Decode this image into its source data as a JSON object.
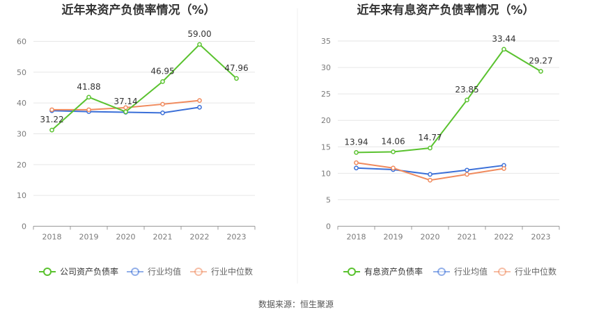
{
  "source_text": "数据来源：恒生聚源",
  "colors": {
    "company": "#5ac22f",
    "industry_avg": "#3a6fd8",
    "industry_median": "#f08a5d",
    "grid": "#e6e6e6",
    "axis": "#999999",
    "tick_text": "#7a7a7a",
    "title": "#333333",
    "label": "#333333"
  },
  "chart_data": [
    {
      "type": "line",
      "title": "近年来资产负债率情况（%）",
      "categories": [
        "2018",
        "2019",
        "2020",
        "2021",
        "2022",
        "2023"
      ],
      "ylim": [
        0,
        65
      ],
      "yticks": [
        0,
        10,
        20,
        30,
        40,
        50,
        60
      ],
      "grid": true,
      "legend_position": "bottom",
      "series": [
        {
          "name": "公司资产负债率",
          "color_key": "company",
          "values": [
            31.22,
            41.88,
            37.14,
            46.95,
            59.0,
            47.96
          ],
          "labels": [
            "31.22",
            "41.88",
            "37.14",
            "46.95",
            "59.00",
            "47.96"
          ]
        },
        {
          "name": "行业均值",
          "color_key": "industry_avg",
          "values": [
            37.5,
            37.2,
            37.0,
            36.8,
            38.6,
            null
          ]
        },
        {
          "name": "行业中位数",
          "color_key": "industry_median",
          "values": [
            37.8,
            37.8,
            38.5,
            39.6,
            40.8,
            null
          ]
        }
      ]
    },
    {
      "type": "line",
      "title": "近年来有息资产负债率情况（%）",
      "categories": [
        "2018",
        "2019",
        "2020",
        "2021",
        "2022",
        "2023"
      ],
      "ylim": [
        0,
        35
      ],
      "yticks": [
        0,
        5,
        10,
        15,
        20,
        25,
        30,
        35
      ],
      "grid": true,
      "legend_position": "bottom",
      "series": [
        {
          "name": "有息资产负债率",
          "color_key": "company",
          "values": [
            13.94,
            14.06,
            14.77,
            23.85,
            33.44,
            29.27
          ],
          "labels": [
            "13.94",
            "14.06",
            "14.77",
            "23.85",
            "33.44",
            "29.27"
          ]
        },
        {
          "name": "行业均值",
          "color_key": "industry_avg",
          "values": [
            11.0,
            10.7,
            9.8,
            10.6,
            11.5,
            null
          ]
        },
        {
          "name": "行业中位数",
          "color_key": "industry_median",
          "values": [
            12.0,
            11.0,
            8.7,
            9.8,
            10.9,
            null
          ]
        }
      ]
    }
  ]
}
